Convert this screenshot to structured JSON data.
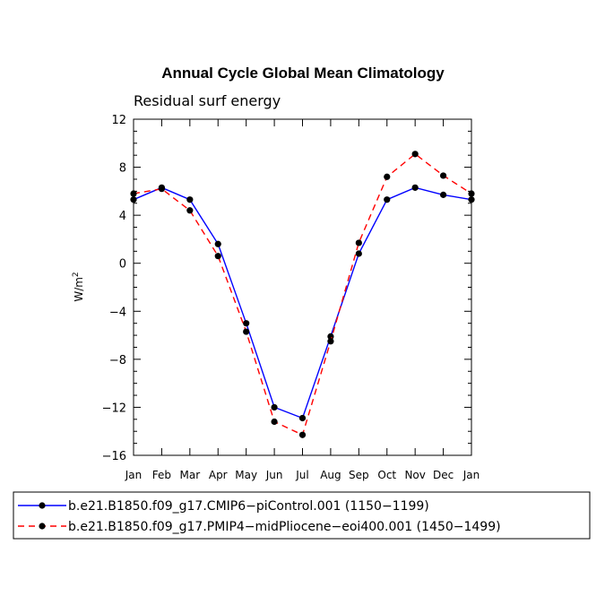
{
  "chart_data": {
    "type": "line",
    "title": "Annual Cycle Global Mean Climatology",
    "subtitle": "Residual surf energy",
    "xlabel": "",
    "ylabel": "W/m",
    "ylabel_superscript": "2",
    "categories": [
      "Jan",
      "Feb",
      "Mar",
      "Apr",
      "May",
      "Jun",
      "Jul",
      "Aug",
      "Sep",
      "Oct",
      "Nov",
      "Dec",
      "Jan"
    ],
    "ylim": [
      -16,
      12
    ],
    "yticks": [
      "12",
      "8",
      "4",
      "0",
      "−4",
      "−8",
      "−12",
      "−16"
    ],
    "ytick_values": [
      12,
      8,
      4,
      0,
      -4,
      -8,
      -12,
      -16
    ],
    "grid": false,
    "legend_position": "bottom",
    "series": [
      {
        "name": "b.e21.B1850.f09_g17.CMIP6−piControl.001 (1150−1199)",
        "values": [
          5.3,
          6.3,
          5.3,
          1.6,
          -5.0,
          -12.0,
          -12.9,
          -6.1,
          0.8,
          5.3,
          6.3,
          5.7,
          5.3
        ],
        "color": "#0000ff",
        "dash": "solid"
      },
      {
        "name": "b.e21.B1850.f09_g17.PMIP4−midPliocene−eoi400.001 (1450−1499)",
        "values": [
          5.8,
          6.2,
          4.4,
          0.6,
          -5.7,
          -13.2,
          -14.3,
          -6.5,
          1.7,
          7.2,
          9.1,
          7.3,
          5.8
        ],
        "color": "#ff0000",
        "dash": "dashed"
      }
    ],
    "marker_color": "#000000"
  }
}
